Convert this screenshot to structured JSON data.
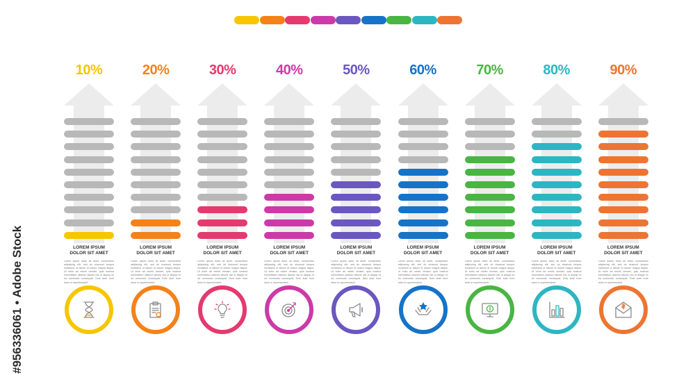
{
  "legend_colors": [
    "#f7c600",
    "#f48219",
    "#e43a6f",
    "#cc3aa8",
    "#6b57c0",
    "#1673c7",
    "#49b543",
    "#2eb5c2",
    "#ec7533"
  ],
  "columns": [
    {
      "percent": "10%",
      "value": 10,
      "color": "#f7c600",
      "title": "LOREM IPSUM\nDOLOR SIT AMET",
      "icon": "hourglass-icon"
    },
    {
      "percent": "20%",
      "value": 20,
      "color": "#f48219",
      "title": "LOREM IPSUM\nDOLOR SIT AMET",
      "icon": "clipboard-icon"
    },
    {
      "percent": "30%",
      "value": 30,
      "color": "#e43a6f",
      "title": "LOREM IPSUM\nDOLOR SIT AMET",
      "icon": "lightbulb-icon"
    },
    {
      "percent": "40%",
      "value": 40,
      "color": "#cc3aa8",
      "title": "LOREM IPSUM\nDOLOR SIT AMET",
      "icon": "target-icon"
    },
    {
      "percent": "50%",
      "value": 50,
      "color": "#6b57c0",
      "title": "LOREM IPSUM\nDOLOR SIT AMET",
      "icon": "megaphone-icon"
    },
    {
      "percent": "60%",
      "value": 60,
      "color": "#1673c7",
      "title": "LOREM IPSUM\nDOLOR SIT AMET",
      "icon": "hands-star-icon"
    },
    {
      "percent": "70%",
      "value": 70,
      "color": "#49b543",
      "title": "LOREM IPSUM\nDOLOR SIT AMET",
      "icon": "monitor-dollar-icon"
    },
    {
      "percent": "80%",
      "value": 80,
      "color": "#2eb5c2",
      "title": "LOREM IPSUM\nDOLOR SIT AMET",
      "icon": "bar-chart-icon"
    },
    {
      "percent": "90%",
      "value": 90,
      "color": "#ec7533",
      "title": "LOREM IPSUM\nDOLOR SIT AMET",
      "icon": "envelope-dollar-icon"
    }
  ],
  "body_text": "Lorem ipsum dolor sit amet, consectetur adipiscing elit, sed do eiusmod tempor incididunt ut labore et dolore magna aliqua. Ut enim ad minim veniam, quis nostrud exercitation ullamco laboris nisi ut aliquip ex ea commodo consequat. Duis aute irure dolor in reprehenderit.",
  "watermark": "#956336061 • Adobe Stock"
}
